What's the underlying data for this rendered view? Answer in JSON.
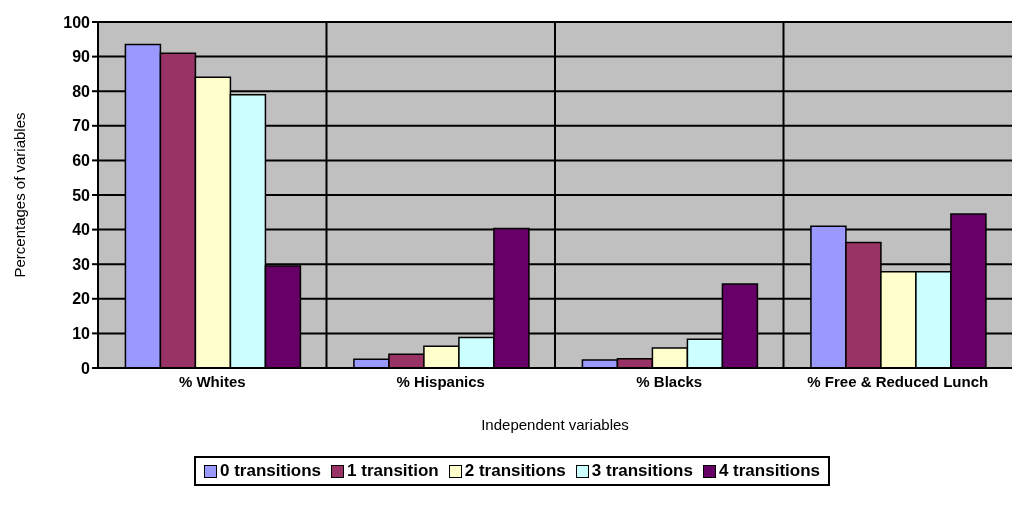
{
  "chart_data": {
    "type": "bar",
    "xlabel": "Independent variables",
    "ylabel": "Percentages of variables",
    "categories": [
      "% Whites",
      "% Hispanics",
      "% Blacks",
      "% Free & Reduced Lunch"
    ],
    "series": [
      {
        "name": "0 transitions",
        "color": "#9999ff",
        "values": [
          93.5,
          2.5,
          2.3,
          41
        ]
      },
      {
        "name": "1 transition",
        "color": "#993366",
        "values": [
          91,
          4,
          2.7,
          36.3
        ]
      },
      {
        "name": "2 transitions",
        "color": "#ffffcc",
        "values": [
          84,
          6.3,
          5.8,
          27.8
        ]
      },
      {
        "name": "3 transitions",
        "color": "#ccffff",
        "values": [
          79,
          8.8,
          8.3,
          27.8
        ]
      },
      {
        "name": "4 transitions",
        "color": "#660066",
        "values": [
          29.5,
          40.3,
          24.3,
          44.5
        ]
      }
    ],
    "ylim": [
      0,
      100
    ],
    "yticks": [
      0,
      10,
      20,
      30,
      40,
      50,
      60,
      70,
      80,
      90,
      100
    ],
    "grid": true,
    "legend": "bottom"
  }
}
